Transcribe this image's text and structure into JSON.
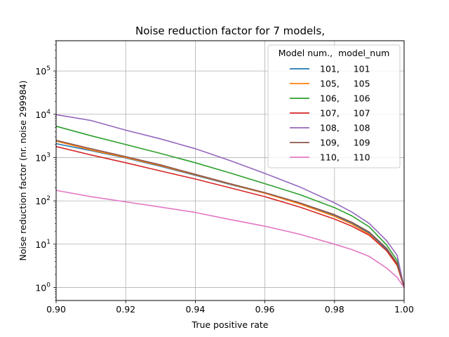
{
  "chart_data": {
    "type": "line",
    "title": "Noise reduction factor for 7 models,",
    "xlabel": "True positive rate",
    "ylabel": "Noise reduction factor (nr. noise 299984)",
    "xlim": [
      0.9,
      1.0
    ],
    "ylim": [
      0.5,
      500000
    ],
    "yscale": "log",
    "grid": true,
    "x_ticks": [
      0.9,
      0.92,
      0.94,
      0.96,
      0.98,
      1.0
    ],
    "x_tick_labels": [
      "0.90",
      "0.92",
      "0.94",
      "0.96",
      "0.98",
      "1.00"
    ],
    "y_ticks": [
      1,
      10,
      100,
      1000,
      10000,
      100000
    ],
    "y_tick_base": [
      "10",
      "10",
      "10",
      "10",
      "10",
      "10"
    ],
    "y_tick_exp": [
      "0",
      "1",
      "2",
      "3",
      "4",
      "5"
    ],
    "legend": {
      "title": "Model num.,  model_num",
      "placement": "upper right"
    },
    "x": [
      0.9,
      0.91,
      0.92,
      0.93,
      0.94,
      0.95,
      0.96,
      0.97,
      0.98,
      0.985,
      0.99,
      0.995,
      0.998,
      1.0
    ],
    "series": [
      {
        "name": "101,     101",
        "color": "#1f77b4",
        "values": [
          2100,
          1450,
          980,
          630,
          390,
          240,
          150,
          88,
          46,
          31,
          18,
          7.5,
          3.5,
          1
        ]
      },
      {
        "name": "105,     105",
        "color": "#ff7f0e",
        "values": [
          2400,
          1500,
          1000,
          650,
          400,
          245,
          150,
          85,
          44,
          29,
          17,
          7,
          3.2,
          1
        ]
      },
      {
        "name": "106,     106",
        "color": "#2ca02c",
        "values": [
          5300,
          3200,
          2000,
          1250,
          760,
          440,
          250,
          140,
          70,
          45,
          25,
          9.5,
          4.2,
          1
        ]
      },
      {
        "name": "107,     107",
        "color": "#d62728",
        "values": [
          1800,
          1150,
          760,
          490,
          320,
          200,
          125,
          72,
          38,
          26,
          16,
          7,
          3.3,
          1
        ]
      },
      {
        "name": "108,     108",
        "color": "#9467bd",
        "values": [
          9800,
          7200,
          4300,
          2700,
          1600,
          850,
          430,
          210,
          90,
          55,
          30,
          12,
          5.5,
          1
        ]
      },
      {
        "name": "109,     109",
        "color": "#8c564b",
        "values": [
          2500,
          1600,
          1050,
          680,
          410,
          250,
          155,
          90,
          48,
          32,
          19,
          8,
          3.6,
          1
        ]
      },
      {
        "name": "110,     110",
        "color": "#e377c2",
        "values": [
          175,
          125,
          95,
          72,
          54,
          37,
          26,
          17,
          10,
          7.5,
          5.2,
          2.8,
          1.7,
          1
        ]
      }
    ]
  }
}
